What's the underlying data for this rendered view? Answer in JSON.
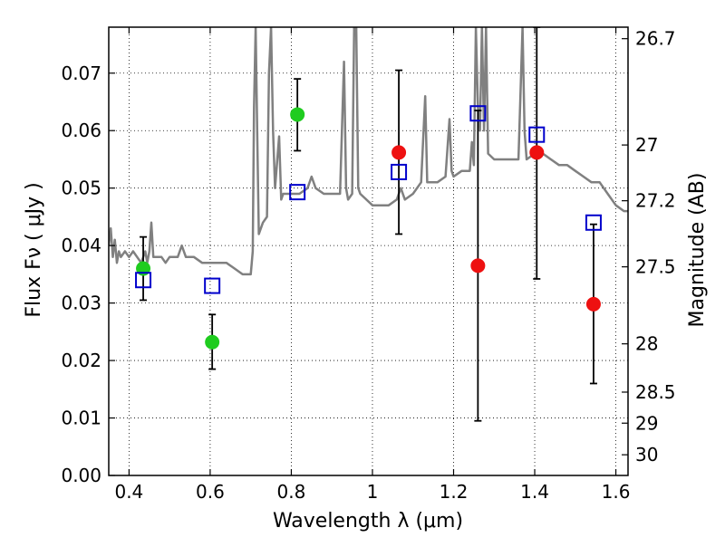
{
  "chart_data": {
    "type": "scatter",
    "xlabel": "Wavelength  λ (μm)",
    "ylabel": "Flux  Fν  ( μJy )",
    "ylabel_right": "Magnitude (AB)",
    "xlim": [
      0.35,
      1.63
    ],
    "ylim": [
      0.0,
      0.078
    ],
    "grid": true,
    "x_ticks": [
      0.4,
      0.6,
      0.8,
      1.0,
      1.2,
      1.4,
      1.6
    ],
    "x_tick_labels": [
      "0.4",
      "0.6",
      "0.8",
      "1",
      "1.2",
      "1.4",
      "1.6"
    ],
    "y_ticks": [
      0.0,
      0.01,
      0.02,
      0.03,
      0.04,
      0.05,
      0.06,
      0.07
    ],
    "y_tick_labels": [
      "0.00",
      "0.01",
      "0.02",
      "0.03",
      "0.04",
      "0.05",
      "0.06",
      "0.07"
    ],
    "right_ticks": [
      {
        "label": "26.7",
        "flux": 0.076
      },
      {
        "label": "27",
        "flux": 0.0575
      },
      {
        "label": "27.2",
        "flux": 0.0478
      },
      {
        "label": "27.5",
        "flux": 0.0363
      },
      {
        "label": "28",
        "flux": 0.0229
      },
      {
        "label": "28.5",
        "flux": 0.0145
      },
      {
        "label": "29",
        "flux": 0.0091
      },
      {
        "label": "30",
        "flux": 0.0036
      }
    ],
    "series": [
      {
        "kind": "line",
        "color": "#808080",
        "points": [
          [
            0.35,
            0.04
          ],
          [
            0.355,
            0.043
          ],
          [
            0.36,
            0.038
          ],
          [
            0.365,
            0.041
          ],
          [
            0.37,
            0.037
          ],
          [
            0.375,
            0.039
          ],
          [
            0.38,
            0.038
          ],
          [
            0.39,
            0.039
          ],
          [
            0.4,
            0.038
          ],
          [
            0.41,
            0.039
          ],
          [
            0.42,
            0.038
          ],
          [
            0.43,
            0.037
          ],
          [
            0.44,
            0.039
          ],
          [
            0.445,
            0.037
          ],
          [
            0.45,
            0.039
          ],
          [
            0.455,
            0.044
          ],
          [
            0.46,
            0.038
          ],
          [
            0.47,
            0.038
          ],
          [
            0.48,
            0.038
          ],
          [
            0.49,
            0.037
          ],
          [
            0.5,
            0.038
          ],
          [
            0.52,
            0.038
          ],
          [
            0.53,
            0.04
          ],
          [
            0.54,
            0.038
          ],
          [
            0.56,
            0.038
          ],
          [
            0.58,
            0.037
          ],
          [
            0.6,
            0.037
          ],
          [
            0.62,
            0.037
          ],
          [
            0.64,
            0.037
          ],
          [
            0.66,
            0.036
          ],
          [
            0.68,
            0.035
          ],
          [
            0.7,
            0.035
          ],
          [
            0.705,
            0.039
          ],
          [
            0.708,
            0.064
          ],
          [
            0.712,
            0.078
          ],
          [
            0.716,
            0.06
          ],
          [
            0.72,
            0.042
          ],
          [
            0.73,
            0.044
          ],
          [
            0.74,
            0.045
          ],
          [
            0.745,
            0.07
          ],
          [
            0.75,
            0.078
          ],
          [
            0.755,
            0.06
          ],
          [
            0.76,
            0.05
          ],
          [
            0.77,
            0.059
          ],
          [
            0.775,
            0.048
          ],
          [
            0.78,
            0.049
          ],
          [
            0.8,
            0.049
          ],
          [
            0.82,
            0.049
          ],
          [
            0.84,
            0.05
          ],
          [
            0.85,
            0.052
          ],
          [
            0.86,
            0.05
          ],
          [
            0.88,
            0.049
          ],
          [
            0.9,
            0.049
          ],
          [
            0.92,
            0.049
          ],
          [
            0.93,
            0.072
          ],
          [
            0.935,
            0.05
          ],
          [
            0.94,
            0.048
          ],
          [
            0.95,
            0.049
          ],
          [
            0.955,
            0.078
          ],
          [
            0.96,
            0.078
          ],
          [
            0.965,
            0.05
          ],
          [
            0.97,
            0.049
          ],
          [
            1.0,
            0.047
          ],
          [
            1.02,
            0.047
          ],
          [
            1.04,
            0.047
          ],
          [
            1.06,
            0.048
          ],
          [
            1.07,
            0.05
          ],
          [
            1.08,
            0.048
          ],
          [
            1.1,
            0.049
          ],
          [
            1.12,
            0.051
          ],
          [
            1.13,
            0.066
          ],
          [
            1.135,
            0.051
          ],
          [
            1.14,
            0.051
          ],
          [
            1.16,
            0.051
          ],
          [
            1.18,
            0.052
          ],
          [
            1.19,
            0.062
          ],
          [
            1.195,
            0.053
          ],
          [
            1.2,
            0.052
          ],
          [
            1.22,
            0.053
          ],
          [
            1.24,
            0.053
          ],
          [
            1.245,
            0.058
          ],
          [
            1.25,
            0.054
          ],
          [
            1.255,
            0.078
          ],
          [
            1.26,
            0.064
          ],
          [
            1.265,
            0.06
          ],
          [
            1.27,
            0.078
          ],
          [
            1.275,
            0.06
          ],
          [
            1.28,
            0.078
          ],
          [
            1.285,
            0.056
          ],
          [
            1.3,
            0.055
          ],
          [
            1.32,
            0.055
          ],
          [
            1.34,
            0.055
          ],
          [
            1.36,
            0.055
          ],
          [
            1.37,
            0.078
          ],
          [
            1.375,
            0.06
          ],
          [
            1.38,
            0.055
          ],
          [
            1.4,
            0.056
          ],
          [
            1.42,
            0.056
          ],
          [
            1.44,
            0.055
          ],
          [
            1.46,
            0.054
          ],
          [
            1.48,
            0.054
          ],
          [
            1.5,
            0.053
          ],
          [
            1.52,
            0.052
          ],
          [
            1.54,
            0.051
          ],
          [
            1.56,
            0.051
          ],
          [
            1.58,
            0.049
          ],
          [
            1.6,
            0.047
          ],
          [
            1.62,
            0.046
          ],
          [
            1.63,
            0.046
          ]
        ]
      },
      {
        "kind": "points",
        "name": "",
        "marker": "circle",
        "color": "#1fcc1f",
        "points": [
          {
            "x": 0.435,
            "y": 0.036,
            "err": [
              0.0305,
              0.0415
            ]
          },
          {
            "x": 0.605,
            "y": 0.0232,
            "err": [
              0.0185,
              0.028
            ]
          },
          {
            "x": 0.815,
            "y": 0.0628,
            "err": [
              0.0565,
              0.069
            ]
          }
        ]
      },
      {
        "kind": "points",
        "name": "",
        "marker": "circle",
        "color": "#ee1111",
        "points": [
          {
            "x": 1.065,
            "y": 0.0562,
            "err": [
              0.042,
              0.0705
            ]
          },
          {
            "x": 1.26,
            "y": 0.0365,
            "err": [
              0.0095,
              0.0635
            ]
          },
          {
            "x": 1.405,
            "y": 0.0562,
            "err": [
              0.0342,
              0.078
            ]
          },
          {
            "x": 1.545,
            "y": 0.0298,
            "err": [
              0.016,
              0.0437
            ]
          }
        ]
      },
      {
        "kind": "points",
        "name": "",
        "marker": "square",
        "color": "#0000cc",
        "points": [
          {
            "x": 0.435,
            "y": 0.034
          },
          {
            "x": 0.605,
            "y": 0.033
          },
          {
            "x": 0.815,
            "y": 0.0493
          },
          {
            "x": 1.065,
            "y": 0.0528
          },
          {
            "x": 1.26,
            "y": 0.063
          },
          {
            "x": 1.405,
            "y": 0.0593
          },
          {
            "x": 1.545,
            "y": 0.044
          }
        ]
      }
    ]
  }
}
